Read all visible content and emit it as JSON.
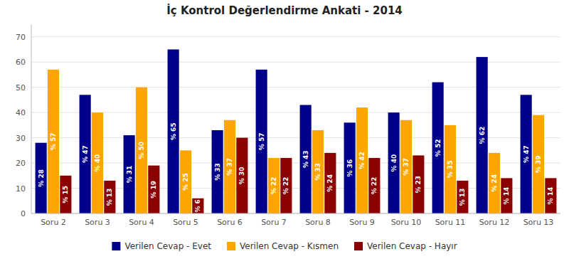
{
  "chart_data": {
    "type": "bar",
    "title": "İç Kontrol Değerlendirme Ankati - 2014",
    "categories": [
      "Soru 2",
      "Soru 3",
      "Soru 4",
      "Soru 5",
      "Soru 6",
      "Soru 7",
      "Soru 8",
      "Soru 9",
      "Soru 10",
      "Soru 11",
      "Soru 12",
      "Soru 13"
    ],
    "series": [
      {
        "name": "Verilen Cevap - Evet",
        "color": "#00008B",
        "values": [
          28,
          47,
          31,
          65,
          33,
          57,
          43,
          36,
          40,
          52,
          62,
          47
        ],
        "value_labels": [
          "% 28",
          "% 47",
          "% 31",
          "% 65",
          "% 33",
          "% 57",
          "% 43",
          "% 36",
          "% 40",
          "% 52",
          "% 62",
          "% 47"
        ]
      },
      {
        "name": "Verilen Cevap - Kısmen",
        "color": "#FFA500",
        "values": [
          57,
          40,
          50,
          25,
          37,
          22,
          33,
          42,
          37,
          35,
          24,
          39
        ],
        "value_labels": [
          "% 57",
          "% 40",
          "% 50",
          "% 25",
          "% 37",
          "% 22",
          "% 33",
          "% 42",
          "% 37",
          "% 35",
          "% 24",
          "% 39"
        ]
      },
      {
        "name": "Verilen Cevap - Hayır",
        "color": "#8B0000",
        "values": [
          15,
          13,
          19,
          6,
          30,
          22,
          24,
          22,
          23,
          13,
          14,
          14
        ],
        "value_labels": [
          "% 15",
          "% 13",
          "% 19",
          "% 6",
          "% 30",
          "% 22",
          "% 24",
          "% 22",
          "% 23",
          "% 13",
          "% 14",
          "% 14"
        ]
      }
    ],
    "ylim": [
      0,
      75
    ],
    "yticks": [
      0,
      10,
      20,
      30,
      40,
      50,
      60,
      70
    ],
    "grid": true,
    "legend": "bottom",
    "data_labels": true
  }
}
